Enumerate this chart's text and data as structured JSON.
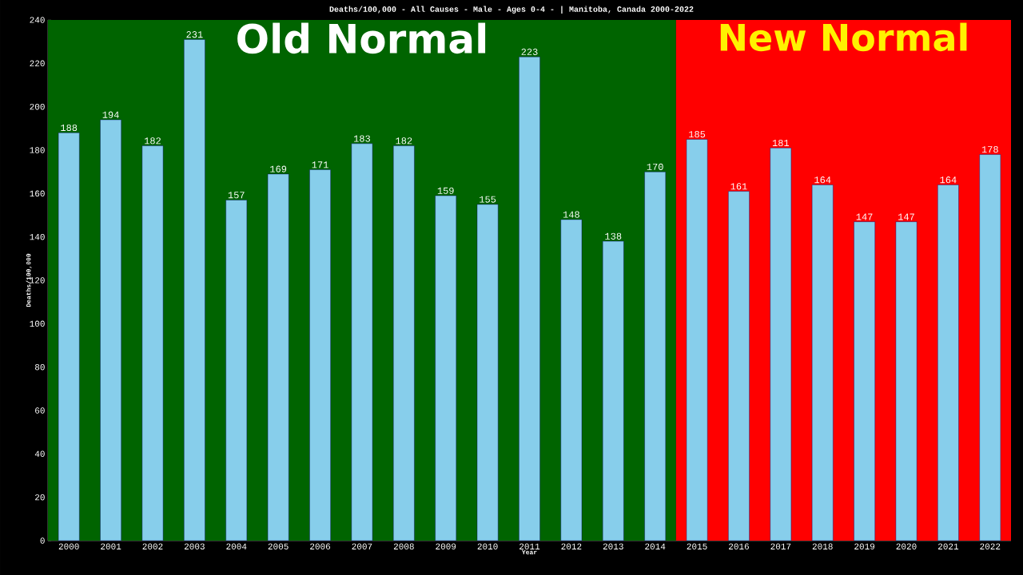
{
  "chart_data": {
    "type": "bar",
    "title": "Deaths/100,000 - All Causes - Male - Ages 0-4 -  | Manitoba, Canada 2000-2022",
    "xlabel": "Year",
    "ylabel": "Deaths/100,000",
    "categories": [
      "2000",
      "2001",
      "2002",
      "2003",
      "2004",
      "2005",
      "2006",
      "2007",
      "2008",
      "2009",
      "2010",
      "2011",
      "2012",
      "2013",
      "2014",
      "2015",
      "2016",
      "2017",
      "2018",
      "2019",
      "2020",
      "2021",
      "2022"
    ],
    "values": [
      188,
      194,
      182,
      231,
      157,
      169,
      171,
      183,
      182,
      159,
      155,
      223,
      148,
      138,
      170,
      185,
      161,
      181,
      164,
      147,
      147,
      164,
      178
    ],
    "color": "#87ceeb",
    "data_labels": true,
    "grid": false,
    "ylim": [
      0,
      240
    ],
    "yticks": [
      0,
      20,
      40,
      60,
      80,
      100,
      120,
      140,
      160,
      180,
      200,
      220,
      240
    ],
    "bands": [
      {
        "axis": "x",
        "from": "2000",
        "to": "2014",
        "label": "Old Normal",
        "color": "#006400"
      },
      {
        "axis": "x",
        "from": "2015",
        "to": "2022",
        "label": "New Normal",
        "color": "#ff0000"
      }
    ]
  }
}
